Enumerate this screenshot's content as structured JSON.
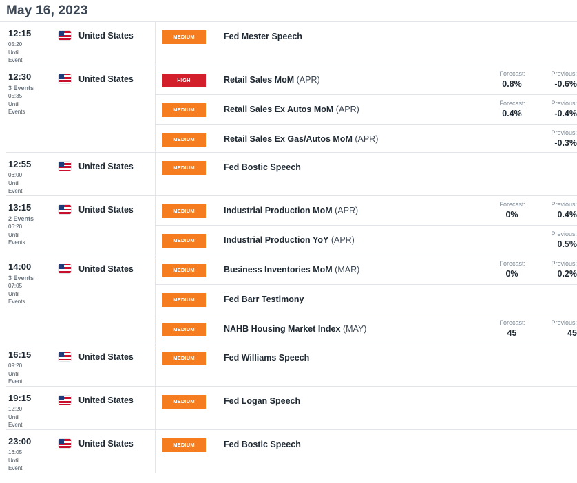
{
  "date": "May 16, 2023",
  "labels": {
    "forecast": "Forecast:",
    "previous": "Previous:"
  },
  "colors": {
    "medium": "#f57c1f",
    "high": "#d21f2b",
    "divider": "#e1e4e8"
  },
  "groups": [
    {
      "time": "12:15",
      "events_count": "",
      "until_time": "05:20",
      "until_label": "Until",
      "event_label": "Event",
      "country": "United States",
      "flag": "us-flag-icon",
      "events": [
        {
          "importance": "MEDIUM",
          "title": "Fed Mester Speech",
          "period": "",
          "forecast": "",
          "previous": ""
        }
      ]
    },
    {
      "time": "12:30",
      "events_count": "3 Events",
      "until_time": "05:35",
      "until_label": "Until",
      "event_label": "Events",
      "country": "United States",
      "flag": "us-flag-icon",
      "events": [
        {
          "importance": "HIGH",
          "title": "Retail Sales MoM",
          "period": "(APR)",
          "forecast": "0.8%",
          "previous": "-0.6%"
        },
        {
          "importance": "MEDIUM",
          "title": "Retail Sales Ex Autos MoM",
          "period": "(APR)",
          "forecast": "0.4%",
          "previous": "-0.4%"
        },
        {
          "importance": "MEDIUM",
          "title": "Retail Sales Ex Gas/Autos MoM",
          "period": "(APR)",
          "forecast": "",
          "previous": "-0.3%"
        }
      ]
    },
    {
      "time": "12:55",
      "events_count": "",
      "until_time": "06:00",
      "until_label": "Until",
      "event_label": "Event",
      "country": "United States",
      "flag": "us-flag-icon",
      "events": [
        {
          "importance": "MEDIUM",
          "title": "Fed Bostic Speech",
          "period": "",
          "forecast": "",
          "previous": ""
        }
      ]
    },
    {
      "time": "13:15",
      "events_count": "2 Events",
      "until_time": "06:20",
      "until_label": "Until",
      "event_label": "Events",
      "country": "United States",
      "flag": "us-flag-icon",
      "events": [
        {
          "importance": "MEDIUM",
          "title": "Industrial Production MoM",
          "period": "(APR)",
          "forecast": "0%",
          "previous": "0.4%"
        },
        {
          "importance": "MEDIUM",
          "title": "Industrial Production YoY",
          "period": "(APR)",
          "forecast": "",
          "previous": "0.5%"
        }
      ]
    },
    {
      "time": "14:00",
      "events_count": "3 Events",
      "until_time": "07:05",
      "until_label": "Until",
      "event_label": "Events",
      "country": "United States",
      "flag": "us-flag-icon",
      "events": [
        {
          "importance": "MEDIUM",
          "title": "Business Inventories MoM",
          "period": "(MAR)",
          "forecast": "0%",
          "previous": "0.2%"
        },
        {
          "importance": "MEDIUM",
          "title": "Fed Barr Testimony",
          "period": "",
          "forecast": "",
          "previous": ""
        },
        {
          "importance": "MEDIUM",
          "title": "NAHB Housing Market Index",
          "period": "(MAY)",
          "forecast": "45",
          "previous": "45"
        }
      ]
    },
    {
      "time": "16:15",
      "events_count": "",
      "until_time": "09:20",
      "until_label": "Until",
      "event_label": "Event",
      "country": "United States",
      "flag": "us-flag-icon",
      "events": [
        {
          "importance": "MEDIUM",
          "title": "Fed Williams Speech",
          "period": "",
          "forecast": "",
          "previous": ""
        }
      ]
    },
    {
      "time": "19:15",
      "events_count": "",
      "until_time": "12:20",
      "until_label": "Until",
      "event_label": "Event",
      "country": "United States",
      "flag": "us-flag-icon",
      "events": [
        {
          "importance": "MEDIUM",
          "title": "Fed Logan Speech",
          "period": "",
          "forecast": "",
          "previous": ""
        }
      ]
    },
    {
      "time": "23:00",
      "events_count": "",
      "until_time": "16:05",
      "until_label": "Until",
      "event_label": "Event",
      "country": "United States",
      "flag": "us-flag-icon",
      "events": [
        {
          "importance": "MEDIUM",
          "title": "Fed Bostic Speech",
          "period": "",
          "forecast": "",
          "previous": ""
        }
      ]
    }
  ]
}
